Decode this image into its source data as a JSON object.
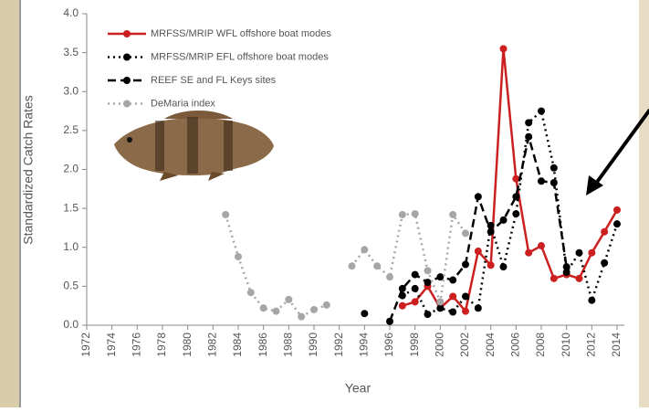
{
  "chart_data": {
    "type": "line",
    "y_label": "Standardized Catch Rates",
    "x_label": "Year",
    "xlim": [
      1972,
      2014
    ],
    "xticks": [
      1972,
      1974,
      1976,
      1978,
      1980,
      1982,
      1984,
      1986,
      1988,
      1990,
      1992,
      1994,
      1996,
      1998,
      2000,
      2002,
      2004,
      2006,
      2008,
      2010,
      2012,
      2014
    ],
    "ylim": [
      0,
      4
    ],
    "yticks": [
      {
        "value": 0,
        "label": "0.0"
      },
      {
        "value": 0.5,
        "label": "0.5"
      },
      {
        "value": 1,
        "label": "1.0"
      },
      {
        "value": 1.5,
        "label": "1.5"
      },
      {
        "value": 2,
        "label": "2.0"
      },
      {
        "value": 2.5,
        "label": "2.5"
      },
      {
        "value": 3,
        "label": "3.0"
      },
      {
        "value": 3.5,
        "label": "3.5"
      },
      {
        "value": 4,
        "label": "4.0"
      }
    ],
    "x": [
      1983,
      1984,
      1985,
      1986,
      1987,
      1988,
      1989,
      1990,
      1991,
      1992,
      1993,
      1994,
      1995,
      1996,
      1997,
      1998,
      1999,
      2000,
      2001,
      2002,
      2003,
      2004,
      2005,
      2006,
      2007,
      2008,
      2009,
      2010,
      2011,
      2012,
      2013,
      2014
    ],
    "legend": "upper left",
    "series": [
      {
        "name": "MRFSS/MRIP WFL offshore boat modes",
        "color": "#cc1f1f",
        "dash": "solid",
        "values": [
          null,
          null,
          null,
          null,
          null,
          null,
          null,
          null,
          null,
          null,
          null,
          null,
          null,
          null,
          0.25,
          0.3,
          0.5,
          0.22,
          0.37,
          0.18,
          0.95,
          0.77,
          3.55,
          1.88,
          0.93,
          1.02,
          0.6,
          0.65,
          0.6,
          0.93,
          1.2,
          1.48
        ]
      },
      {
        "name": "MRFSS/MRIP EFL offshore boat modes",
        "color": "#000000",
        "dash": "dotted",
        "values": [
          null,
          null,
          null,
          null,
          null,
          null,
          null,
          null,
          null,
          null,
          null,
          0.15,
          null,
          null,
          0.38,
          0.47,
          0.14,
          0.22,
          0.17,
          0.37,
          0.22,
          1.28,
          0.75,
          1.43,
          2.6,
          2.75,
          2.02,
          0.68,
          0.93,
          0.32,
          0.8,
          1.3
        ]
      },
      {
        "name": "REEF SE and FL Keys sites",
        "color": "#000000",
        "dash": "dashed",
        "values": [
          null,
          null,
          null,
          null,
          null,
          null,
          null,
          null,
          null,
          null,
          null,
          null,
          null,
          0.05,
          0.47,
          0.65,
          0.55,
          0.62,
          0.58,
          0.78,
          1.65,
          1.2,
          1.35,
          1.65,
          2.42,
          1.85,
          1.83,
          0.75,
          null,
          null,
          null,
          null
        ]
      },
      {
        "name": "DeMaria index",
        "color": "#a6a6a6",
        "dash": "dotted",
        "values": [
          1.42,
          0.88,
          0.42,
          0.22,
          0.18,
          0.33,
          0.11,
          0.2,
          0.26,
          null,
          0.76,
          0.97,
          0.76,
          0.62,
          1.42,
          1.43,
          0.7,
          0.3,
          1.42,
          1.18,
          null,
          null,
          null,
          null,
          null,
          null,
          null,
          null,
          null,
          null,
          null,
          null
        ]
      }
    ]
  }
}
